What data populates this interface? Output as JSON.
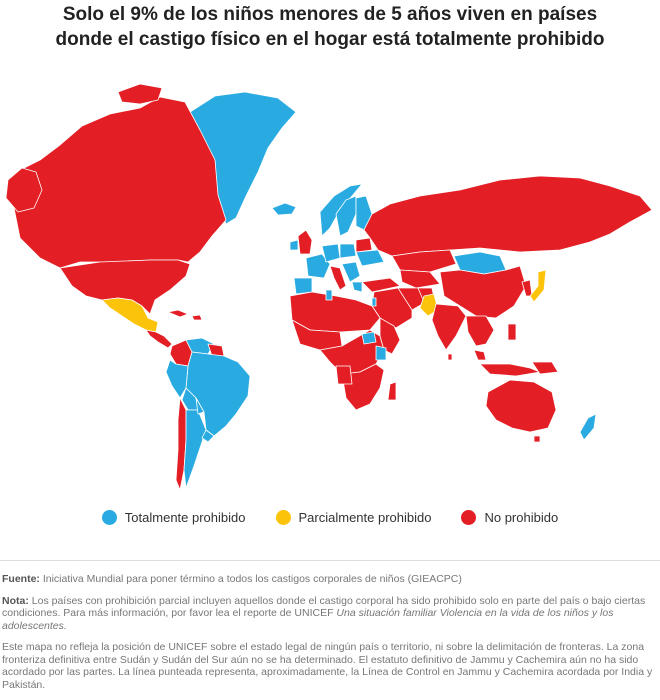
{
  "title": {
    "line1": "Solo el 9% de los niños menores de 5 años viven en países",
    "line2": "donde el castigo físico en el hogar está totalmente prohibido"
  },
  "colors": {
    "full": "#29abe2",
    "partial": "#fcc30b",
    "none": "#e31e24"
  },
  "legend": {
    "full": "Totalmente prohibido",
    "partial": "Parcialmente prohibido",
    "none": "No prohibido"
  },
  "footer": {
    "source_label": "Fuente:",
    "source_text": "Iniciativa Mundial para poner término a todos los castigos corporales de niños (GIEACPC)",
    "note_label": "Nota:",
    "note_text": "Los países con prohibición parcial incluyen aquellos donde el castigo corporal ha sido prohibido solo en parte del país o bajo ciertas condiciones. Para más información, por favor lea el reporte de UNICEF",
    "note_report": "Una situación familiar Violencia en la vida de los niños y los adolescentes.",
    "disclaimer": "Este mapa no refleja la posición de UNICEF sobre el estado legal de ningún país o territorio, ni sobre la delimitación de fronteras. La zona fronteriza definitiva entre Sudán y Sudán del Sur aún no se ha determinado. El estatuto definitivo de Jammu y Cachemira aún no ha sido acordado por las partes. La línea punteada representa, aproximadamente, la Línea de Control en Jammu y Cachemira acordada por India y Pakistán."
  }
}
